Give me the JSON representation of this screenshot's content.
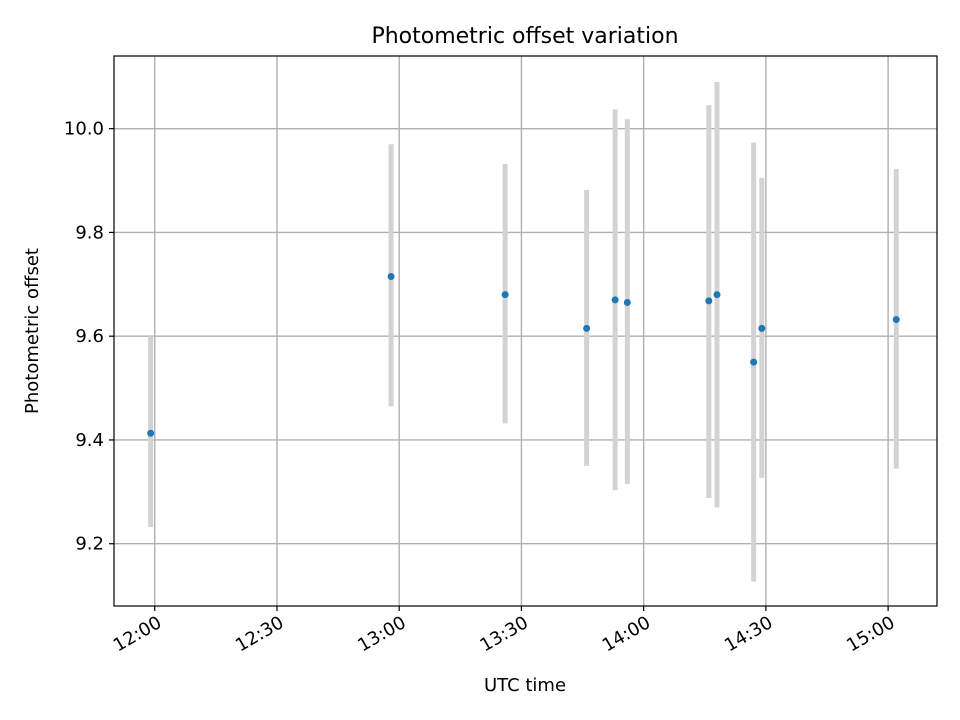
{
  "chart_data": {
    "type": "scatter",
    "title": "Photometric offset variation",
    "xlabel": "UTC time",
    "ylabel": "Photometric offset",
    "grid": true,
    "x_ticks": [
      "12:00",
      "12:30",
      "13:00",
      "13:30",
      "14:00",
      "14:30",
      "15:00"
    ],
    "y_ticks": [
      "9.2",
      "9.4",
      "9.6",
      "9.8",
      "10.0"
    ],
    "xlim": [
      "11:50",
      "15:12"
    ],
    "ylim": [
      9.08,
      10.14
    ],
    "colors": {
      "point": "#1f77b4",
      "errorbar": "#d3d3d3",
      "grid": "#b0b0b0"
    },
    "points": [
      {
        "x": "11:59",
        "y": 9.413,
        "ylow": 9.232,
        "yhigh": 9.6
      },
      {
        "x": "12:58",
        "y": 9.715,
        "ylow": 9.465,
        "yhigh": 9.97
      },
      {
        "x": "13:26",
        "y": 9.68,
        "ylow": 9.432,
        "yhigh": 9.932
      },
      {
        "x": "13:46",
        "y": 9.615,
        "ylow": 9.35,
        "yhigh": 9.882
      },
      {
        "x": "13:53",
        "y": 9.67,
        "ylow": 9.303,
        "yhigh": 10.037
      },
      {
        "x": "13:56",
        "y": 9.665,
        "ylow": 9.315,
        "yhigh": 10.018
      },
      {
        "x": "14:16",
        "y": 9.668,
        "ylow": 9.288,
        "yhigh": 10.045
      },
      {
        "x": "14:18",
        "y": 9.68,
        "ylow": 9.27,
        "yhigh": 10.09
      },
      {
        "x": "14:27",
        "y": 9.55,
        "ylow": 9.127,
        "yhigh": 9.973
      },
      {
        "x": "14:29",
        "y": 9.615,
        "ylow": 9.327,
        "yhigh": 9.905
      },
      {
        "x": "15:02",
        "y": 9.632,
        "ylow": 9.345,
        "yhigh": 9.922
      }
    ]
  }
}
